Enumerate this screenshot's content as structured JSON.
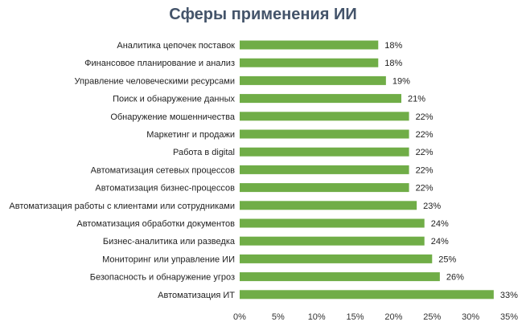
{
  "chart_data": {
    "type": "bar",
    "orientation": "horizontal",
    "title": "Сферы применения ИИ",
    "categories": [
      "Аналитика цепочек поставок",
      "Финансовое планирование и анализ",
      "Управление человеческими ресурсами",
      "Поиск и обнаружение данных",
      "Обнаружение мошенничества",
      "Маркетинг и продажи",
      "Работа в digital",
      "Автоматизация сетевых процессов",
      "Автоматизация бизнес-процессов",
      "Автоматизация работы с клиентами или сотрудниками",
      "Автоматизация обработки документов",
      "Бизнес-аналитика или разведка",
      "Мониторинг или управление ИИ",
      "Безопасность и обнаружение угроз",
      "Автоматизация ИТ"
    ],
    "values": [
      18,
      18,
      19,
      21,
      22,
      22,
      22,
      22,
      22,
      23,
      24,
      24,
      25,
      26,
      33
    ],
    "data_labels": [
      "18%",
      "18%",
      "19%",
      "21%",
      "22%",
      "22%",
      "22%",
      "22%",
      "22%",
      "23%",
      "24%",
      "24%",
      "25%",
      "26%",
      "33%"
    ],
    "xlim": [
      0,
      35
    ],
    "x_ticks": [
      0,
      5,
      10,
      15,
      20,
      25,
      30,
      35
    ],
    "x_tick_labels": [
      "0%",
      "5%",
      "10%",
      "15%",
      "20%",
      "25%",
      "30%",
      "35%"
    ],
    "xlabel": "",
    "ylabel": "",
    "grid": false,
    "legend": "none",
    "bar_color": "#70AD47"
  }
}
